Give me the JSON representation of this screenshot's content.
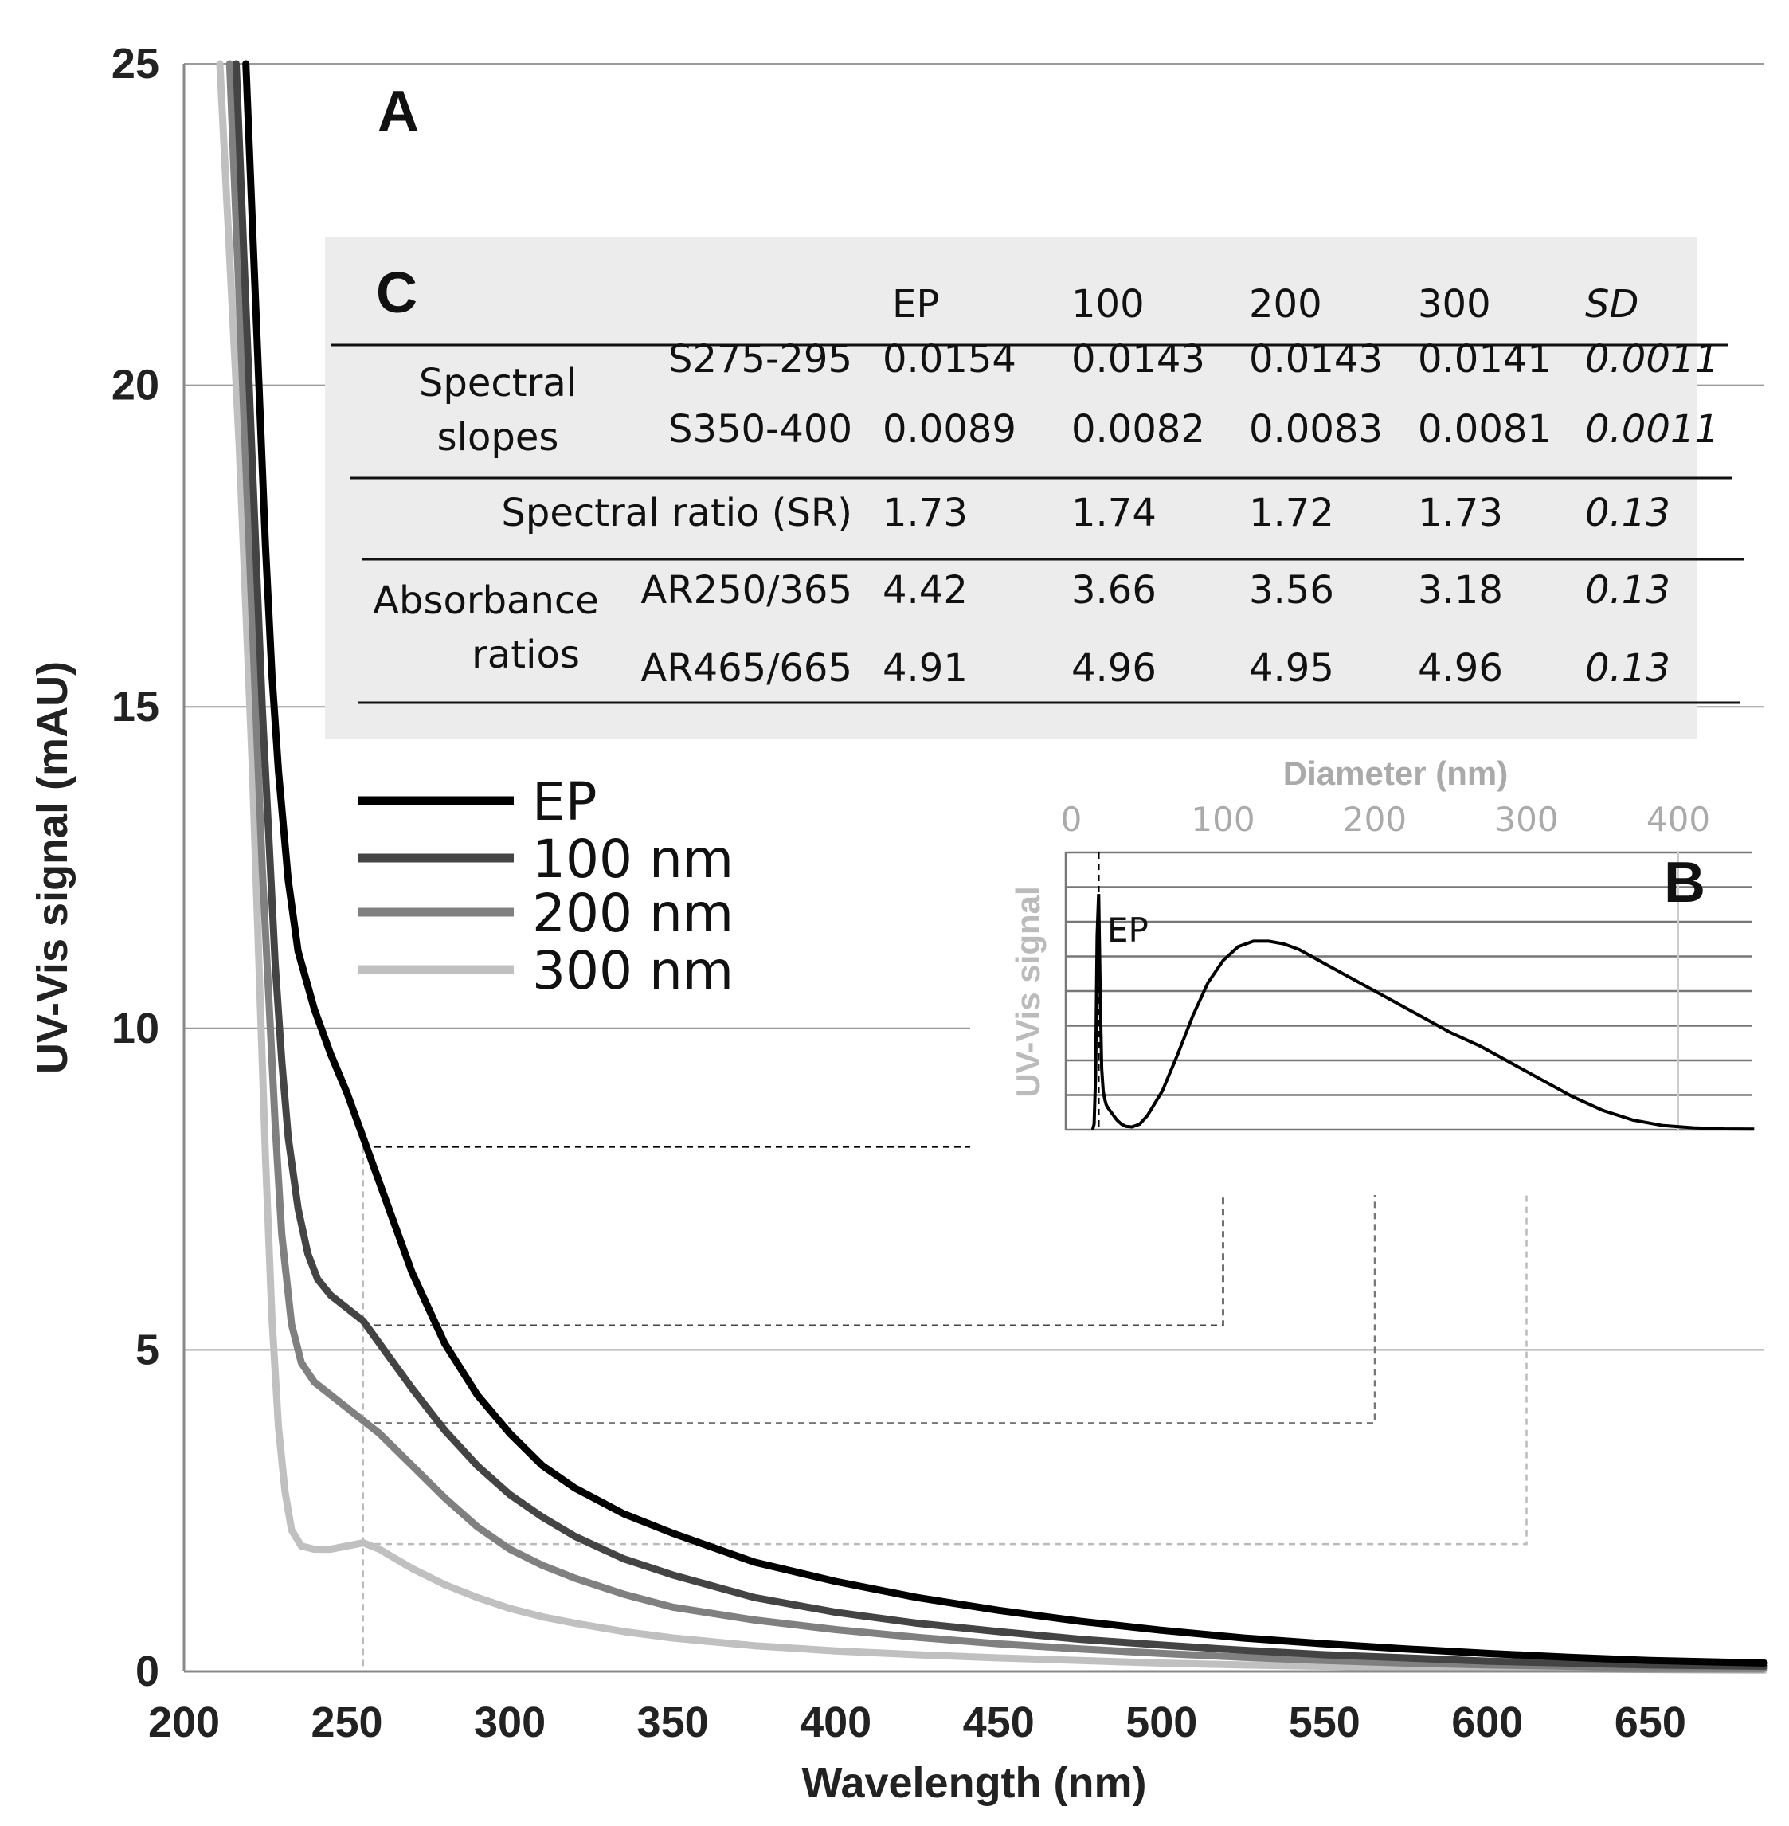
{
  "chart_data": {
    "type": "line",
    "panel_a_label": "A",
    "xlabel": "Wavelength (nm)",
    "ylabel": "UV-Vis signal (mAU)",
    "xlim": [
      200,
      685
    ],
    "ylim": [
      0,
      25
    ],
    "xticks": [
      200,
      250,
      300,
      350,
      400,
      450,
      500,
      550,
      600,
      650
    ],
    "yticks": [
      0,
      5,
      10,
      15,
      20,
      25
    ],
    "grid": "horizontal",
    "legend_position": "middle-left",
    "series": [
      {
        "name": "EP",
        "color": "#000000",
        "x": [
          219,
          221,
          223,
          225,
          227,
          229,
          232,
          235,
          240,
          245,
          250,
          255,
          260,
          265,
          270,
          280,
          290,
          300,
          310,
          320,
          335,
          350,
          375,
          400,
          425,
          450,
          475,
          500,
          525,
          550,
          575,
          600,
          625,
          650,
          685
        ],
        "y": [
          25,
          22.5,
          20,
          17.5,
          15.5,
          14,
          12.3,
          11.2,
          10.3,
          9.6,
          9.0,
          8.3,
          7.6,
          6.9,
          6.2,
          5.1,
          4.3,
          3.7,
          3.2,
          2.85,
          2.45,
          2.15,
          1.7,
          1.4,
          1.15,
          0.95,
          0.78,
          0.64,
          0.52,
          0.43,
          0.35,
          0.28,
          0.22,
          0.17,
          0.13
        ]
      },
      {
        "name": "100 nm",
        "color": "#444444",
        "x": [
          216,
          218,
          220,
          222,
          224,
          226,
          228,
          230,
          232,
          235,
          238,
          241,
          245,
          250,
          255,
          260,
          265,
          270,
          280,
          290,
          300,
          310,
          320,
          335,
          350,
          375,
          400,
          425,
          450,
          475,
          500,
          525,
          550,
          575,
          600,
          625,
          650,
          685
        ],
        "y": [
          25,
          22.5,
          20,
          17.5,
          15,
          13,
          11,
          9.5,
          8.3,
          7.2,
          6.5,
          6.1,
          5.85,
          5.65,
          5.45,
          5.1,
          4.75,
          4.4,
          3.75,
          3.2,
          2.75,
          2.4,
          2.1,
          1.75,
          1.5,
          1.15,
          0.92,
          0.75,
          0.62,
          0.5,
          0.41,
          0.33,
          0.26,
          0.21,
          0.16,
          0.13,
          0.1,
          0.08
        ]
      },
      {
        "name": "200 nm",
        "color": "#808080",
        "x": [
          214,
          216,
          218,
          220,
          222,
          224,
          226,
          228,
          230,
          233,
          236,
          240,
          245,
          250,
          255,
          260,
          265,
          270,
          280,
          290,
          300,
          310,
          320,
          335,
          350,
          375,
          400,
          425,
          450,
          475,
          500,
          525,
          550,
          575,
          600,
          625,
          650,
          685
        ],
        "y": [
          25,
          22.5,
          20,
          17.5,
          15,
          12.5,
          10.5,
          8.5,
          6.8,
          5.4,
          4.8,
          4.5,
          4.3,
          4.1,
          3.9,
          3.7,
          3.45,
          3.2,
          2.7,
          2.25,
          1.9,
          1.65,
          1.45,
          1.2,
          1.0,
          0.8,
          0.65,
          0.53,
          0.43,
          0.35,
          0.28,
          0.22,
          0.17,
          0.13,
          0.1,
          0.08,
          0.06,
          0.05
        ]
      },
      {
        "name": "300 nm",
        "color": "#c0c0c0",
        "x": [
          211,
          213,
          215,
          217,
          219,
          221,
          223,
          225,
          227,
          229,
          231,
          233,
          236,
          240,
          245,
          250,
          255,
          260,
          265,
          270,
          280,
          290,
          300,
          310,
          320,
          335,
          350,
          375,
          400,
          425,
          450,
          475,
          500,
          525,
          550,
          575,
          600,
          625,
          650,
          685
        ],
        "y": [
          25,
          23,
          21,
          19,
          16.5,
          14,
          11,
          8,
          5.5,
          3.8,
          2.8,
          2.2,
          1.95,
          1.9,
          1.9,
          1.95,
          2.0,
          1.9,
          1.75,
          1.6,
          1.35,
          1.15,
          0.98,
          0.85,
          0.75,
          0.62,
          0.52,
          0.4,
          0.32,
          0.26,
          0.21,
          0.17,
          0.13,
          0.1,
          0.08,
          0.06,
          0.05,
          0.04,
          0.03,
          0.02
        ]
      }
    ],
    "inset_b": {
      "label": "B",
      "xlabel": "Diameter (nm)",
      "ylabel": "UV-Vis signal",
      "xticks": [
        0,
        100,
        200,
        300,
        400
      ],
      "xlim": [
        0,
        450
      ],
      "peak_label": "EP",
      "curve_x": [
        14,
        15,
        16,
        17,
        18,
        19,
        20,
        21,
        22,
        23,
        24,
        26,
        28,
        30,
        33,
        36,
        40,
        45,
        50,
        60,
        70,
        80,
        90,
        100,
        110,
        120,
        130,
        140,
        150,
        170,
        190,
        210,
        230,
        250,
        270,
        290,
        310,
        330,
        350,
        370,
        390,
        410,
        430,
        450
      ],
      "curve_y": [
        0,
        0.02,
        0.2,
        0.7,
        0.85,
        0.5,
        0.22,
        0.14,
        0.11,
        0.09,
        0.08,
        0.065,
        0.05,
        0.035,
        0.02,
        0.012,
        0.01,
        0.02,
        0.05,
        0.14,
        0.27,
        0.41,
        0.53,
        0.61,
        0.66,
        0.68,
        0.68,
        0.67,
        0.65,
        0.59,
        0.53,
        0.47,
        0.41,
        0.35,
        0.3,
        0.24,
        0.18,
        0.12,
        0.07,
        0.035,
        0.015,
        0.007,
        0.003,
        0.002
      ]
    },
    "table_c": {
      "label": "C",
      "headers": [
        "EP",
        "100",
        "200",
        "300",
        "SD"
      ],
      "groups": [
        {
          "group": "Spectral slopes",
          "group_lines": [
            "Spectral",
            "slopes"
          ],
          "rows": [
            {
              "label": "S275-295",
              "values": [
                "0.0154",
                "0.0143",
                "0.0143",
                "0.0141",
                "0.0011"
              ]
            },
            {
              "label": "S350-400",
              "values": [
                "0.0089",
                "0.0082",
                "0.0083",
                "0.0081",
                "0.0011"
              ]
            }
          ]
        },
        {
          "group": "",
          "group_lines": [],
          "rows": [
            {
              "label": "Spectral ratio (SR)",
              "values": [
                "1.73",
                "1.74",
                "1.72",
                "1.73",
                "0.13"
              ]
            }
          ]
        },
        {
          "group": "Absorbance ratios",
          "group_lines": [
            "Absorbance",
            "ratios"
          ],
          "rows": [
            {
              "label": "AR250/365",
              "values": [
                "4.42",
                "3.66",
                "3.56",
                "3.18",
                "0.13"
              ]
            },
            {
              "label": "AR465/665",
              "values": [
                "4.91",
                "4.96",
                "4.95",
                "4.96",
                "0.13"
              ]
            }
          ]
        }
      ]
    }
  }
}
